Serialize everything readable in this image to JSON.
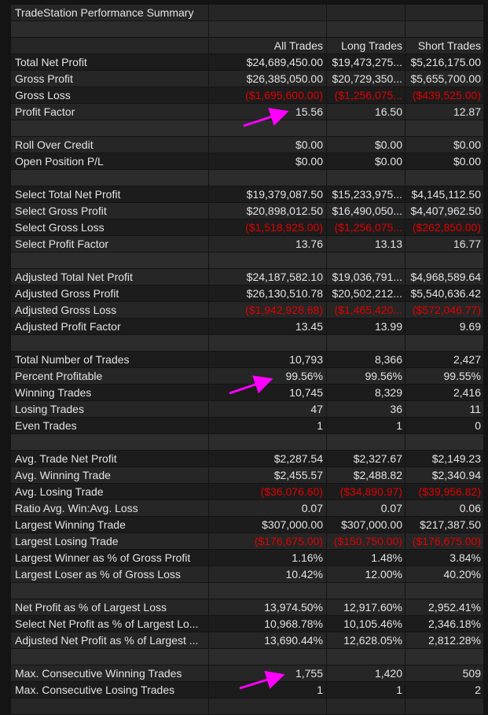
{
  "title": "TradeStation Performance Summary",
  "columns": [
    "All Trades",
    "Long Trades",
    "Short Trades"
  ],
  "rows": [
    {
      "label": "Total Net Profit",
      "values": [
        "$24,689,450.00",
        "$19,473,275...",
        "$5,216,175.00"
      ]
    },
    {
      "label": "Gross Profit",
      "values": [
        "$26,385,050.00",
        "$20,729,350...",
        "$5,655,700.00"
      ]
    },
    {
      "label": "Gross Loss",
      "values": [
        "($1,695,600.00)",
        "($1,256,075...",
        "($439,525.00)"
      ],
      "negative": true
    },
    {
      "label": "Profit Factor",
      "values": [
        "15.56",
        "16.50",
        "12.87"
      ]
    },
    null,
    {
      "label": "Roll Over Credit",
      "values": [
        "$0.00",
        "$0.00",
        "$0.00"
      ]
    },
    {
      "label": "Open Position P/L",
      "values": [
        "$0.00",
        "$0.00",
        "$0.00"
      ]
    },
    null,
    {
      "label": "Select Total Net Profit",
      "values": [
        "$19,379,087.50",
        "$15,233,975...",
        "$4,145,112.50"
      ]
    },
    {
      "label": "Select Gross Profit",
      "values": [
        "$20,898,012.50",
        "$16,490,050...",
        "$4,407,962.50"
      ]
    },
    {
      "label": "Select Gross Loss",
      "values": [
        "($1,518,925.00)",
        "($1,256,075...",
        "($262,850.00)"
      ],
      "negative": true
    },
    {
      "label": "Select Profit Factor",
      "values": [
        "13.76",
        "13.13",
        "16.77"
      ]
    },
    null,
    {
      "label": "Adjusted Total Net Profit",
      "values": [
        "$24,187,582.10",
        "$19,036,791...",
        "$4,968,589.64"
      ]
    },
    {
      "label": "Adjusted Gross Profit",
      "values": [
        "$26,130,510.78",
        "$20,502,212...",
        "$5,540,636.42"
      ]
    },
    {
      "label": "Adjusted Gross Loss",
      "values": [
        "($1,942,928.68)",
        "($1,465,420...",
        "($572,046.77)"
      ],
      "negative": true
    },
    {
      "label": "Adjusted Profit Factor",
      "values": [
        "13.45",
        "13.99",
        "9.69"
      ]
    },
    null,
    {
      "label": "Total Number of Trades",
      "values": [
        "10,793",
        "8,366",
        "2,427"
      ]
    },
    {
      "label": "Percent Profitable",
      "values": [
        "99.56%",
        "99.56%",
        "99.55%"
      ]
    },
    {
      "label": "Winning Trades",
      "values": [
        "10,745",
        "8,329",
        "2,416"
      ]
    },
    {
      "label": "Losing Trades",
      "values": [
        "47",
        "36",
        "11"
      ]
    },
    {
      "label": "Even Trades",
      "values": [
        "1",
        "1",
        "0"
      ]
    },
    null,
    {
      "label": "Avg. Trade Net Profit",
      "values": [
        "$2,287.54",
        "$2,327.67",
        "$2,149.23"
      ]
    },
    {
      "label": "Avg. Winning Trade",
      "values": [
        "$2,455.57",
        "$2,488.82",
        "$2,340.94"
      ]
    },
    {
      "label": "Avg. Losing Trade",
      "values": [
        "($36,076.60)",
        "($34,890.97)",
        "($39,956.82)"
      ],
      "negative": true
    },
    {
      "label": "Ratio Avg. Win:Avg. Loss",
      "values": [
        "0.07",
        "0.07",
        "0.06"
      ]
    },
    {
      "label": "Largest Winning Trade",
      "values": [
        "$307,000.00",
        "$307,000.00",
        "$217,387.50"
      ]
    },
    {
      "label": "Largest Losing Trade",
      "values": [
        "($176,675.00)",
        "($150,750.00)",
        "($176,675.00)"
      ],
      "negative": true
    },
    {
      "label": "Largest Winner as % of Gross Profit",
      "values": [
        "1.16%",
        "1.48%",
        "3.84%"
      ]
    },
    {
      "label": "Largest Loser as % of Gross Loss",
      "values": [
        "10.42%",
        "12.00%",
        "40.20%"
      ]
    },
    null,
    {
      "label": "Net Profit as % of Largest Loss",
      "values": [
        "13,974.50%",
        "12,917.60%",
        "2,952.41%"
      ]
    },
    {
      "label": "Select Net Profit as % of Largest Lo...",
      "values": [
        "10,968.78%",
        "10,105.46%",
        "2,346.18%"
      ]
    },
    {
      "label": "Adjusted Net Profit as % of Largest ...",
      "values": [
        "13,690.44%",
        "12,628.05%",
        "2,812.28%"
      ]
    },
    null,
    {
      "label": "Max. Consecutive Winning Trades",
      "values": [
        "1,755",
        "1,420",
        "509"
      ]
    },
    {
      "label": "Max. Consecutive Losing Trades",
      "values": [
        "1",
        "1",
        "2"
      ]
    }
  ]
}
